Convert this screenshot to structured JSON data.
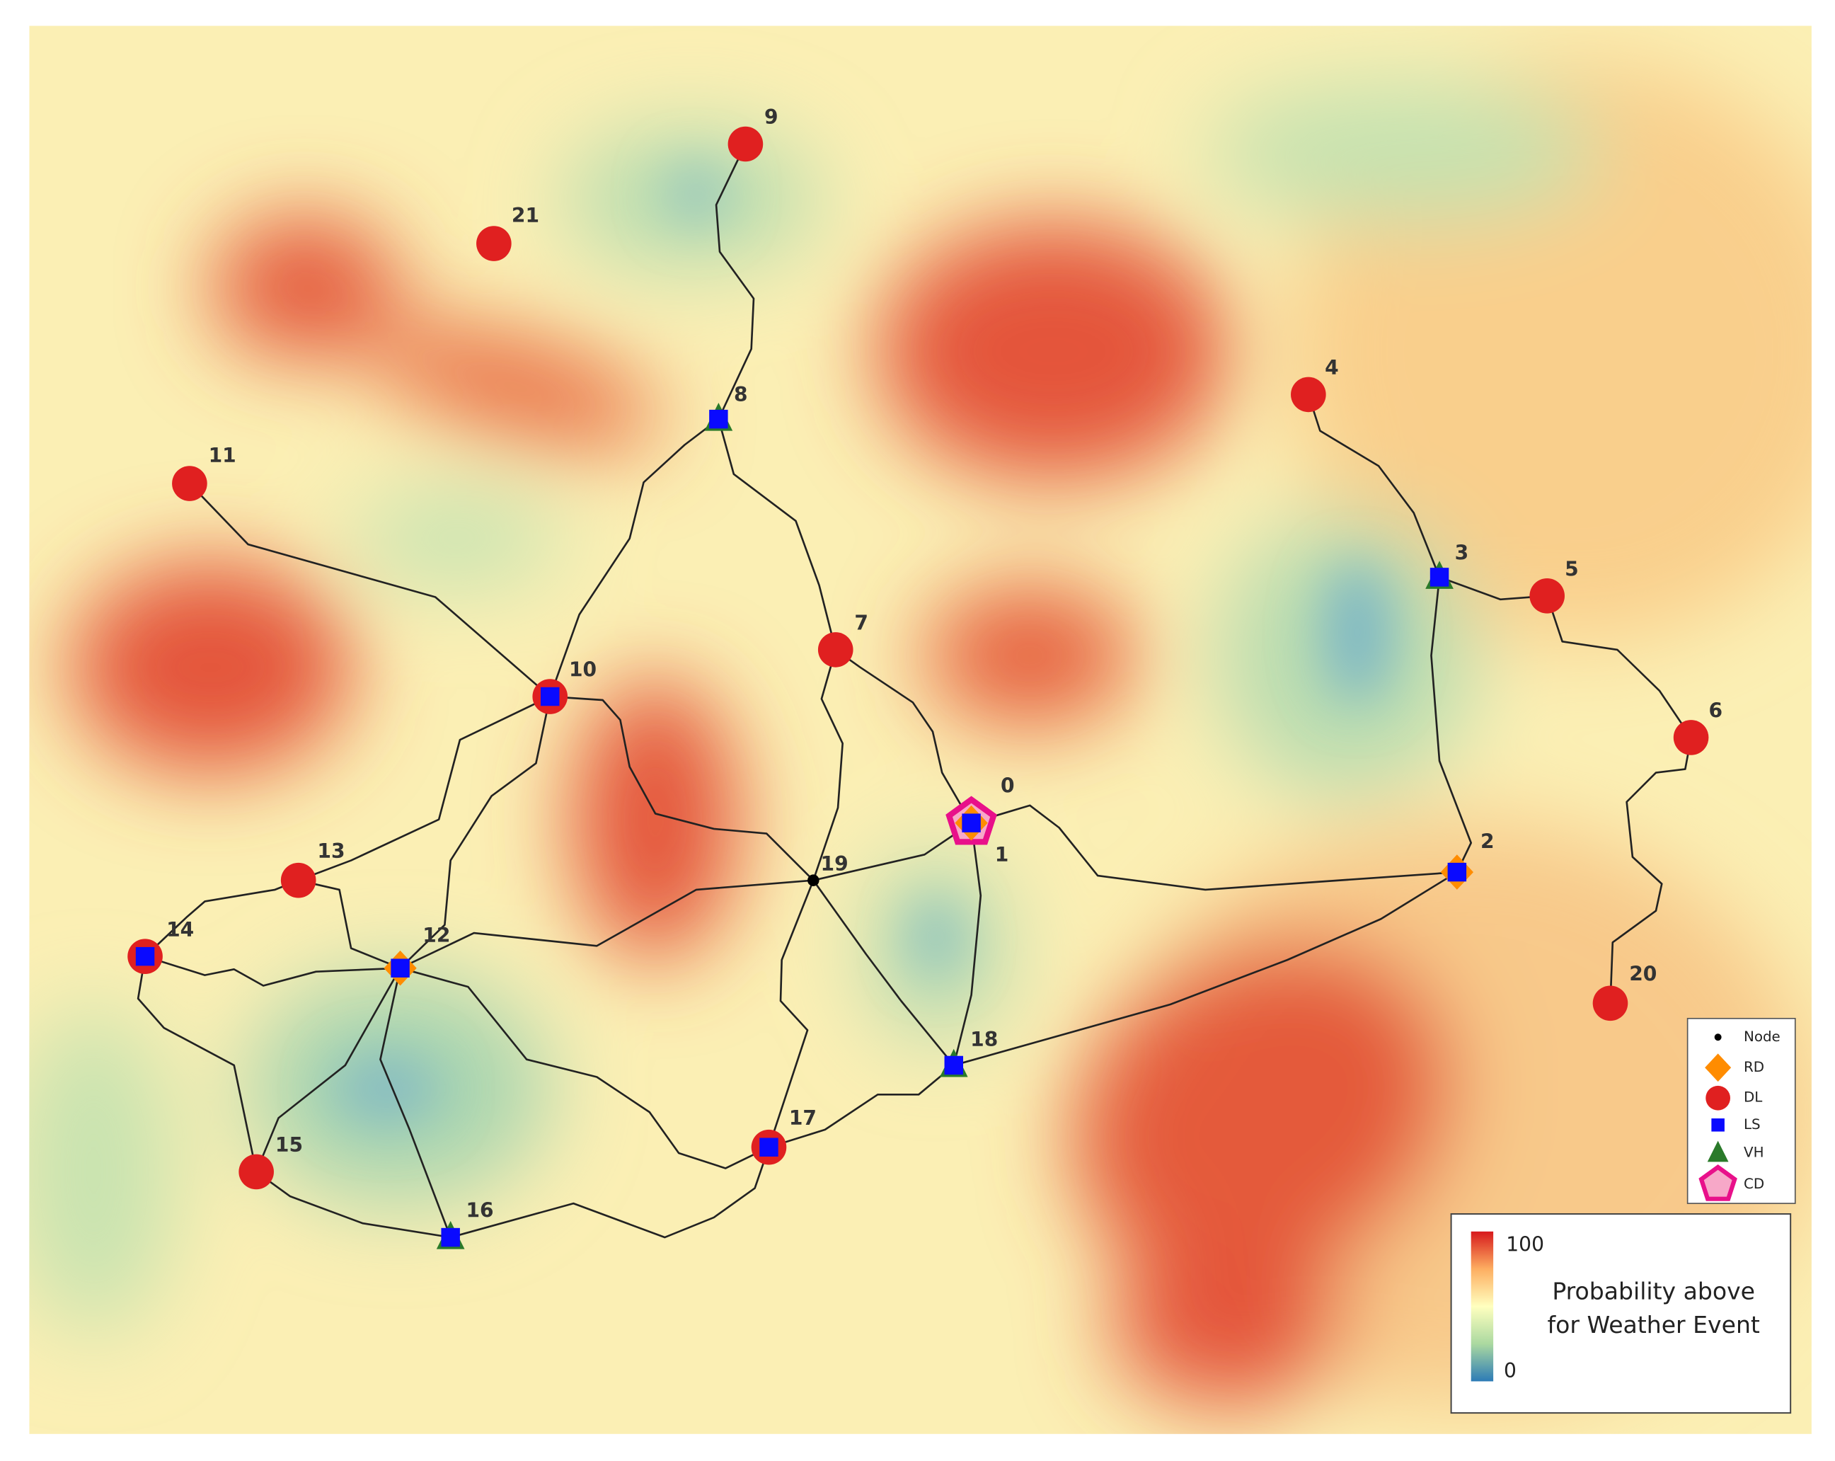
{
  "nodes": [
    {
      "label": "0"
    },
    {
      "label": "1"
    },
    {
      "label": "2"
    },
    {
      "label": "3"
    },
    {
      "label": "4"
    },
    {
      "label": "5"
    },
    {
      "label": "6"
    },
    {
      "label": "7"
    },
    {
      "label": "8"
    },
    {
      "label": "9"
    },
    {
      "label": "10"
    },
    {
      "label": "11"
    },
    {
      "label": "12"
    },
    {
      "label": "13"
    },
    {
      "label": "14"
    },
    {
      "label": "15"
    },
    {
      "label": "16"
    },
    {
      "label": "17"
    },
    {
      "label": "18"
    },
    {
      "label": "19"
    },
    {
      "label": "20"
    },
    {
      "label": "21"
    }
  ],
  "legend": {
    "items": [
      "Node",
      "RD",
      "DL",
      "LS",
      "VH",
      "CD"
    ]
  },
  "colorbar": {
    "max": "100",
    "min": "0",
    "title": [
      "Probability above",
      "for Weather Event"
    ]
  }
}
